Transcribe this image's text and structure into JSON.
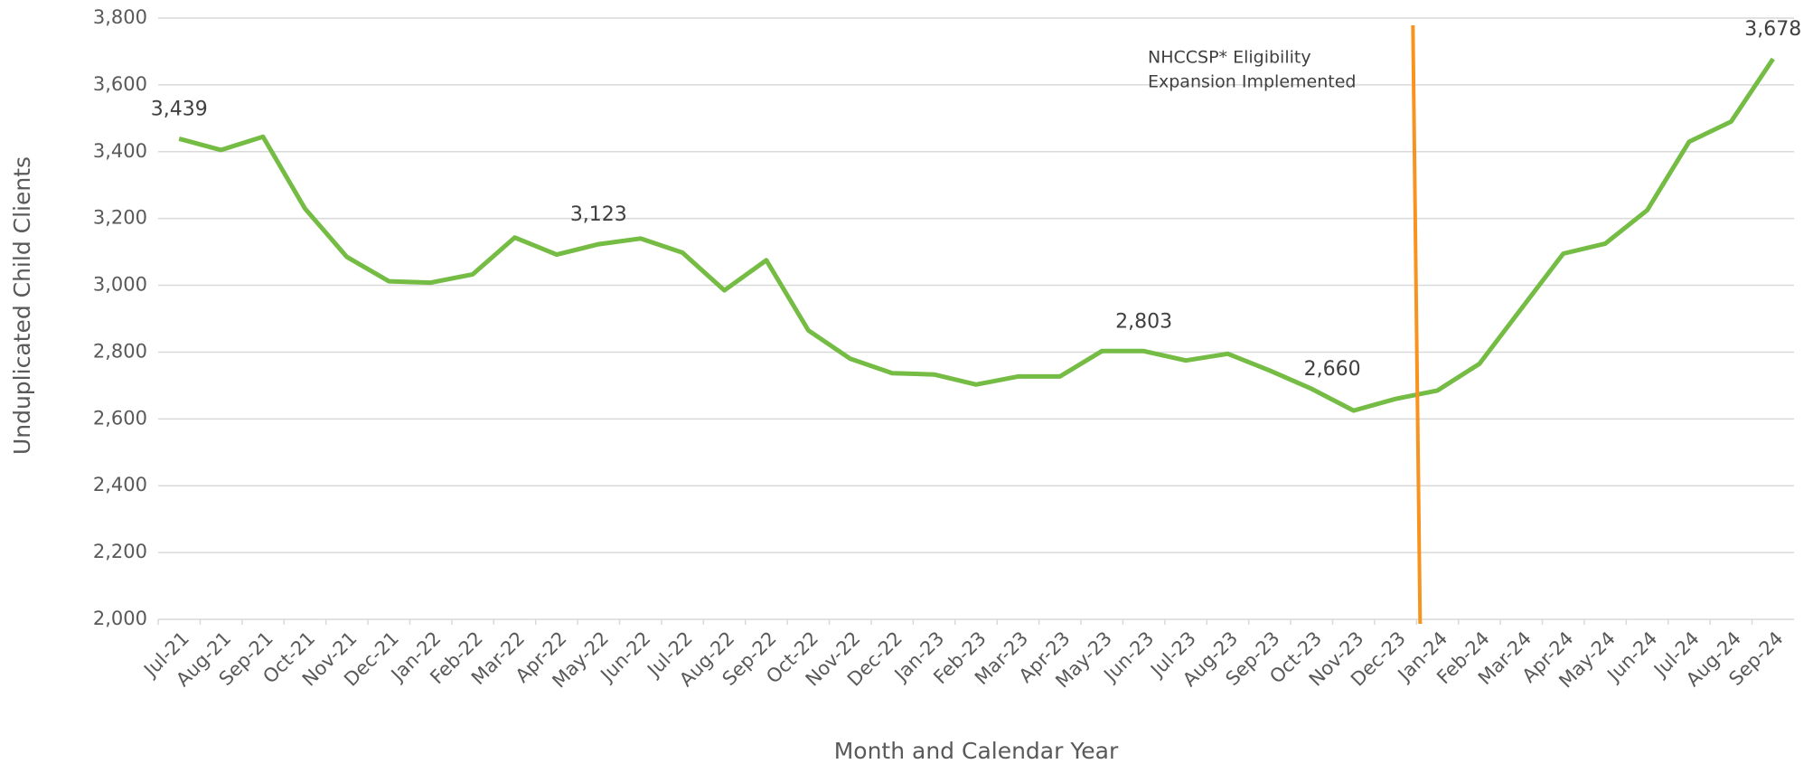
{
  "chart_data": {
    "type": "line",
    "x_label": "Month and Calendar Year",
    "y_label": "Unduplicated Child Clients",
    "annotation": [
      "NHCCSP* Eligibility",
      "Expansion Implemented"
    ],
    "annotation_color": "#f7931e",
    "categories": [
      "Jul-21",
      "Aug-21",
      "Sep-21",
      "Oct-21",
      "Nov-21",
      "Dec-21",
      "Jan-22",
      "Feb-22",
      "Mar-22",
      "Apr-22",
      "May-22",
      "Jun-22",
      "Jul-22",
      "Aug-22",
      "Sep-22",
      "Oct-22",
      "Nov-22",
      "Dec-22",
      "Jan-23",
      "Feb-23",
      "Mar-23",
      "Apr-23",
      "May-23",
      "Jun-23",
      "Jul-23",
      "Aug-23",
      "Sep-23",
      "Oct-23",
      "Nov-23",
      "Dec-23",
      "Jan-24",
      "Feb-24",
      "Mar-24",
      "Apr-24",
      "May-24",
      "Jun-24",
      "Jul-24",
      "Aug-24",
      "Sep-24"
    ],
    "series": [
      {
        "name": "Unduplicated Child Clients",
        "color": "#74bc44",
        "values": [
          3439,
          3405,
          3445,
          3230,
          3085,
          3012,
          3008,
          3033,
          3143,
          3092,
          3123,
          3140,
          3098,
          2985,
          3075,
          2865,
          2780,
          2737,
          2733,
          2703,
          2727,
          2727,
          2803,
          2803,
          2775,
          2795,
          2745,
          2690,
          2625,
          2660,
          2685,
          2765,
          2930,
          3095,
          3125,
          3225,
          3430,
          3490,
          3678
        ],
        "value_labels": [
          "3,439",
          null,
          null,
          null,
          null,
          null,
          null,
          null,
          null,
          null,
          "3,123",
          null,
          null,
          null,
          null,
          null,
          null,
          null,
          null,
          null,
          null,
          null,
          null,
          "2,803",
          null,
          null,
          null,
          null,
          null,
          "2,660",
          null,
          null,
          null,
          null,
          null,
          null,
          null,
          null,
          "3,678"
        ]
      }
    ],
    "ylim": [
      2000,
      3800
    ],
    "yticks": [
      {
        "value": 2000,
        "label": "2,000"
      },
      {
        "value": 2200,
        "label": "2,200"
      },
      {
        "value": 2400,
        "label": "2,400"
      },
      {
        "value": 2600,
        "label": "2,600"
      },
      {
        "value": 2800,
        "label": "2,800"
      },
      {
        "value": 3000,
        "label": "3,000"
      },
      {
        "value": 3200,
        "label": "3,200"
      },
      {
        "value": 3400,
        "label": "3,400"
      },
      {
        "value": 3600,
        "label": "3,600"
      },
      {
        "value": 3800,
        "label": "3,800"
      }
    ],
    "grid": true
  }
}
